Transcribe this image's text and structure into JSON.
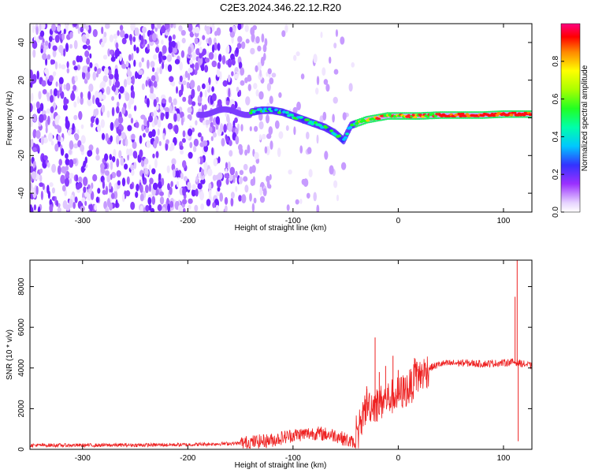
{
  "title": "C2E3.2024.346.22.12.R20",
  "chart_data": [
    {
      "type": "heatmap",
      "name": "spectrogram",
      "xlabel": "Height of straight line (km)",
      "ylabel": "Frequency (Hz)",
      "xlim": [
        -350,
        127
      ],
      "ylim": [
        -50,
        50
      ],
      "xticks": [
        -300,
        -200,
        -100,
        0,
        100
      ],
      "yticks": [
        -40,
        -20,
        0,
        20,
        40
      ],
      "grid": false,
      "colorbar": {
        "label": "Normalized spectral amplitude",
        "range": [
          0,
          1
        ],
        "ticks": [
          0.0,
          0.2,
          0.4,
          0.6,
          0.8
        ],
        "colormap": "white-purple-blue-cyan-green-yellow-red-magenta"
      },
      "main_trace": [
        {
          "x": -140,
          "y": 3
        },
        {
          "x": -130,
          "y": 4
        },
        {
          "x": -120,
          "y": 4
        },
        {
          "x": -110,
          "y": 3
        },
        {
          "x": -100,
          "y": 1
        },
        {
          "x": -90,
          "y": -1
        },
        {
          "x": -80,
          "y": -3
        },
        {
          "x": -70,
          "y": -5
        },
        {
          "x": -60,
          "y": -8
        },
        {
          "x": -52,
          "y": -12
        },
        {
          "x": -45,
          "y": -4
        },
        {
          "x": -40,
          "y": -3
        },
        {
          "x": -30,
          "y": -1
        },
        {
          "x": -20,
          "y": 0
        },
        {
          "x": -10,
          "y": 1
        },
        {
          "x": 0,
          "y": 1
        },
        {
          "x": 20,
          "y": 1
        },
        {
          "x": 40,
          "y": 1.5
        },
        {
          "x": 60,
          "y": 1.5
        },
        {
          "x": 80,
          "y": 1.5
        },
        {
          "x": 100,
          "y": 2
        },
        {
          "x": 127,
          "y": 2
        }
      ]
    },
    {
      "type": "line",
      "name": "snr",
      "xlabel": "Height of straight line (km)",
      "ylabel": "SNR (10 * v/v)",
      "xlim": [
        -350,
        127
      ],
      "ylim": [
        0,
        9300
      ],
      "xticks": [
        -300,
        -200,
        -100,
        0,
        100
      ],
      "yticks": [
        0,
        2000,
        4000,
        6000,
        8000
      ],
      "grid": false,
      "color": "#ee2222",
      "envelope": [
        {
          "x": -350,
          "y": 200
        },
        {
          "x": -300,
          "y": 200
        },
        {
          "x": -250,
          "y": 210
        },
        {
          "x": -200,
          "y": 230
        },
        {
          "x": -150,
          "y": 300
        },
        {
          "x": -120,
          "y": 450
        },
        {
          "x": -100,
          "y": 700
        },
        {
          "x": -80,
          "y": 800
        },
        {
          "x": -60,
          "y": 700
        },
        {
          "x": -40,
          "y": 250
        },
        {
          "x": -35,
          "y": 1500
        },
        {
          "x": -30,
          "y": 2200
        },
        {
          "x": -20,
          "y": 2200
        },
        {
          "x": -10,
          "y": 2500
        },
        {
          "x": 0,
          "y": 2700
        },
        {
          "x": 10,
          "y": 3000
        },
        {
          "x": 20,
          "y": 3600
        },
        {
          "x": 30,
          "y": 4000
        },
        {
          "x": 40,
          "y": 4200
        },
        {
          "x": 60,
          "y": 4250
        },
        {
          "x": 80,
          "y": 4200
        },
        {
          "x": 100,
          "y": 4250
        },
        {
          "x": 110,
          "y": 4300
        },
        {
          "x": 127,
          "y": 4100
        }
      ],
      "spikes": [
        {
          "x": -30,
          "y": 3100
        },
        {
          "x": -22,
          "y": 5500
        },
        {
          "x": -18,
          "y": 3800
        },
        {
          "x": -12,
          "y": 4100
        },
        {
          "x": -5,
          "y": 4600
        },
        {
          "x": 0,
          "y": 3900
        },
        {
          "x": 111,
          "y": 7500
        },
        {
          "x": 113,
          "y": 9300
        },
        {
          "x": 114,
          "y": 400
        }
      ]
    }
  ]
}
